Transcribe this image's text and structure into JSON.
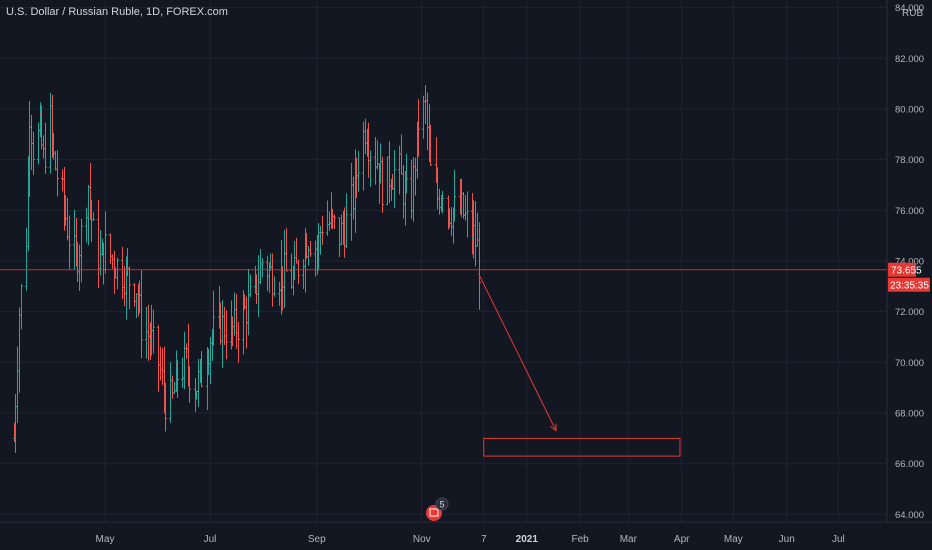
{
  "header": {
    "symbol": "U.S. Dollar / Russian Ruble",
    "interval": "1D",
    "exchange": "FOREX.com",
    "separator": ", "
  },
  "price_scale": {
    "currency": "RUB",
    "last_price": "73.655",
    "countdown": "23:35:35",
    "tick_labels": [
      "84.000",
      "82.000",
      "80.000",
      "78.000",
      "76.000",
      "74.000",
      "72.000",
      "70.000",
      "68.000",
      "66.000",
      "64.000"
    ]
  },
  "time_scale": {
    "tick_labels": [
      "May",
      "Jul",
      "Sep",
      "Nov",
      "7",
      "2021",
      "Feb",
      "Mar",
      "Apr",
      "May",
      "Jun",
      "Jul"
    ]
  },
  "events_badge": {
    "count": "5",
    "icon": "calendar-icon"
  },
  "colors": {
    "background": "#131722",
    "grid": "#1f2433",
    "text": "#b2b5be",
    "up": "#26a69a",
    "down": "#ef5350",
    "drawing": "#e53935",
    "price_line": "#e53935"
  },
  "chart_data": {
    "type": "ohlc",
    "title": "U.S. Dollar / Russian Ruble, 1D, FOREX.com",
    "xlabel": "",
    "ylabel": "",
    "ylim": [
      63.7,
      84.3
    ],
    "grid": true,
    "y_ticks": [
      64,
      66,
      68,
      70,
      72,
      74,
      76,
      78,
      80,
      82,
      84
    ],
    "series": [
      {
        "name": "USDRUB",
        "points": [
          {
            "date": "2020-03-09",
            "close": 67
          },
          {
            "date": "2020-03-12",
            "close": 72
          },
          {
            "date": "2020-03-16",
            "close": 75
          },
          {
            "date": "2020-03-18",
            "close": 80
          },
          {
            "date": "2020-03-20",
            "close": 78.5
          },
          {
            "date": "2020-03-24",
            "close": 79
          },
          {
            "date": "2020-03-26",
            "close": 78
          },
          {
            "date": "2020-03-30",
            "close": 79.5
          },
          {
            "date": "2020-04-01",
            "close": 78
          },
          {
            "date": "2020-04-06",
            "close": 76.5
          },
          {
            "date": "2020-04-10",
            "close": 75
          },
          {
            "date": "2020-04-14",
            "close": 74
          },
          {
            "date": "2020-04-17",
            "close": 75
          },
          {
            "date": "2020-04-21",
            "close": 77
          },
          {
            "date": "2020-04-24",
            "close": 75
          },
          {
            "date": "2020-04-28",
            "close": 74
          },
          {
            "date": "2020-05-01",
            "close": 74.5
          },
          {
            "date": "2020-05-06",
            "close": 74
          },
          {
            "date": "2020-05-12",
            "close": 73.5
          },
          {
            "date": "2020-05-19",
            "close": 73
          },
          {
            "date": "2020-05-22",
            "close": 71.5
          },
          {
            "date": "2020-05-27",
            "close": 71
          },
          {
            "date": "2020-06-01",
            "close": 70
          },
          {
            "date": "2020-06-05",
            "close": 68.5
          },
          {
            "date": "2020-06-09",
            "close": 68.5
          },
          {
            "date": "2020-06-12",
            "close": 69.5
          },
          {
            "date": "2020-06-17",
            "close": 70
          },
          {
            "date": "2020-06-22",
            "close": 69
          },
          {
            "date": "2020-06-26",
            "close": 69.5
          },
          {
            "date": "2020-07-01",
            "close": 71
          },
          {
            "date": "2020-07-07",
            "close": 71.5
          },
          {
            "date": "2020-07-13",
            "close": 71.2
          },
          {
            "date": "2020-07-17",
            "close": 71.5
          },
          {
            "date": "2020-07-21",
            "close": 72
          },
          {
            "date": "2020-07-27",
            "close": 72.8
          },
          {
            "date": "2020-07-31",
            "close": 74
          },
          {
            "date": "2020-08-05",
            "close": 73.5
          },
          {
            "date": "2020-08-10",
            "close": 73.5
          },
          {
            "date": "2020-08-14",
            "close": 73.5
          },
          {
            "date": "2020-08-18",
            "close": 73.2
          },
          {
            "date": "2020-08-24",
            "close": 74.5
          },
          {
            "date": "2020-08-27",
            "close": 75
          },
          {
            "date": "2020-09-01",
            "close": 74.5
          },
          {
            "date": "2020-09-04",
            "close": 75.5
          },
          {
            "date": "2020-09-09",
            "close": 75.5
          },
          {
            "date": "2020-09-14",
            "close": 75
          },
          {
            "date": "2020-09-18",
            "close": 75.5
          },
          {
            "date": "2020-09-22",
            "close": 76.5
          },
          {
            "date": "2020-09-25",
            "close": 78
          },
          {
            "date": "2020-09-29",
            "close": 79.3
          },
          {
            "date": "2020-10-02",
            "close": 78.5
          },
          {
            "date": "2020-10-06",
            "close": 78
          },
          {
            "date": "2020-10-09",
            "close": 77
          },
          {
            "date": "2020-10-14",
            "close": 77.5
          },
          {
            "date": "2020-10-19",
            "close": 77.5
          },
          {
            "date": "2020-10-22",
            "close": 76.5
          },
          {
            "date": "2020-10-26",
            "close": 76.5
          },
          {
            "date": "2020-10-30",
            "close": 79.5
          },
          {
            "date": "2020-11-03",
            "close": 80
          },
          {
            "date": "2020-11-06",
            "close": 77.5
          },
          {
            "date": "2020-11-10",
            "close": 76.5
          },
          {
            "date": "2020-11-13",
            "close": 77
          },
          {
            "date": "2020-11-17",
            "close": 76
          },
          {
            "date": "2020-11-20",
            "close": 76
          },
          {
            "date": "2020-11-24",
            "close": 76
          },
          {
            "date": "2020-11-27",
            "close": 75.5
          },
          {
            "date": "2020-12-01",
            "close": 75
          },
          {
            "date": "2020-12-03",
            "close": 74.5
          },
          {
            "date": "2020-12-04",
            "close": 73.8
          }
        ]
      }
    ],
    "annotations": [
      {
        "type": "trend-arrow",
        "from": {
          "date": "2020-12-04",
          "value": 73.5
        },
        "to": {
          "date": "2021-01-18",
          "value": 67.3
        }
      },
      {
        "type": "target-rectangle",
        "from": {
          "date": "2020-12-07",
          "value": 67
        },
        "to": {
          "date": "2021-03-31",
          "value": 66.3
        }
      },
      {
        "type": "price-line",
        "value": 73.655
      }
    ]
  }
}
